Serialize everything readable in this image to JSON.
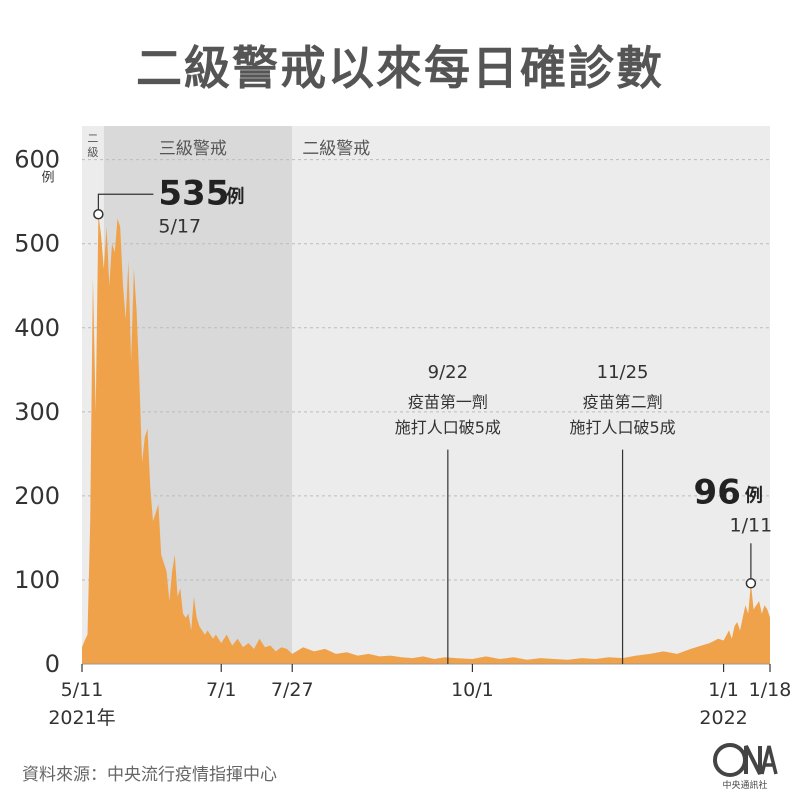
{
  "title": "二級警戒以來每日確診數",
  "source": "資料來源：中央流行疫情指揮中心",
  "logo": {
    "text": "中央通訊社",
    "icon": "cna-logo-icon"
  },
  "colors": {
    "area": "#f0a24a",
    "band_lvl3": "#d9d9d9",
    "band_lvl2": "#ececec",
    "grid": "#bcbcbc",
    "text": "#333333"
  },
  "chart_data": {
    "type": "area",
    "title": "二級警戒以來每日確診數",
    "ylim": [
      0,
      640
    ],
    "y_ticks": [
      0,
      100,
      200,
      300,
      400,
      500,
      600
    ],
    "y_unit": "例",
    "grid": true,
    "x_ticks": [
      {
        "date": "2021-05-11",
        "label": "5/11",
        "sub": "2021年"
      },
      {
        "date": "2021-07-01",
        "label": "7/1"
      },
      {
        "date": "2021-07-27",
        "label": "7/27"
      },
      {
        "date": "2021-10-01",
        "label": "10/1"
      },
      {
        "date": "2022-01-01",
        "label": "1/1",
        "sub": "2022"
      },
      {
        "date": "2022-01-18",
        "label": "1/18"
      }
    ],
    "bands": [
      {
        "label": "二級",
        "from": "2021-05-11",
        "to": "2021-05-19"
      },
      {
        "label": "三級警戒",
        "from": "2021-05-19",
        "to": "2021-07-27"
      },
      {
        "label": "二級警戒",
        "from": "2021-07-27",
        "to": "2022-01-18"
      }
    ],
    "series": [
      {
        "points": [
          [
            "2021-05-11",
            20
          ],
          [
            "2021-05-12",
            28
          ],
          [
            "2021-05-13",
            35
          ],
          [
            "2021-05-14",
            170
          ],
          [
            "2021-05-15",
            460
          ],
          [
            "2021-05-16",
            300
          ],
          [
            "2021-05-17",
            535
          ],
          [
            "2021-05-18",
            510
          ],
          [
            "2021-05-19",
            470
          ],
          [
            "2021-05-20",
            520
          ],
          [
            "2021-05-21",
            450
          ],
          [
            "2021-05-22",
            500
          ],
          [
            "2021-05-23",
            490
          ],
          [
            "2021-05-24",
            530
          ],
          [
            "2021-05-25",
            520
          ],
          [
            "2021-05-26",
            450
          ],
          [
            "2021-05-27",
            410
          ],
          [
            "2021-05-28",
            480
          ],
          [
            "2021-05-29",
            360
          ],
          [
            "2021-05-30",
            470
          ],
          [
            "2021-05-31",
            420
          ],
          [
            "2021-06-01",
            340
          ],
          [
            "2021-06-02",
            240
          ],
          [
            "2021-06-03",
            270
          ],
          [
            "2021-06-04",
            280
          ],
          [
            "2021-06-05",
            210
          ],
          [
            "2021-06-06",
            170
          ],
          [
            "2021-06-07",
            180
          ],
          [
            "2021-06-08",
            190
          ],
          [
            "2021-06-09",
            130
          ],
          [
            "2021-06-10",
            120
          ],
          [
            "2021-06-11",
            110
          ],
          [
            "2021-06-12",
            75
          ],
          [
            "2021-06-13",
            110
          ],
          [
            "2021-06-14",
            130
          ],
          [
            "2021-06-15",
            80
          ],
          [
            "2021-06-16",
            90
          ],
          [
            "2021-06-17",
            60
          ],
          [
            "2021-06-18",
            55
          ],
          [
            "2021-06-19",
            60
          ],
          [
            "2021-06-20",
            40
          ],
          [
            "2021-06-21",
            80
          ],
          [
            "2021-06-22",
            55
          ],
          [
            "2021-06-23",
            45
          ],
          [
            "2021-06-24",
            40
          ],
          [
            "2021-06-25",
            35
          ],
          [
            "2021-06-26",
            40
          ],
          [
            "2021-06-27",
            35
          ],
          [
            "2021-06-28",
            30
          ],
          [
            "2021-06-29",
            35
          ],
          [
            "2021-06-30",
            30
          ],
          [
            "2021-07-01",
            25
          ],
          [
            "2021-07-03",
            35
          ],
          [
            "2021-07-05",
            22
          ],
          [
            "2021-07-07",
            30
          ],
          [
            "2021-07-09",
            20
          ],
          [
            "2021-07-11",
            25
          ],
          [
            "2021-07-13",
            18
          ],
          [
            "2021-07-15",
            30
          ],
          [
            "2021-07-17",
            20
          ],
          [
            "2021-07-19",
            22
          ],
          [
            "2021-07-21",
            15
          ],
          [
            "2021-07-23",
            20
          ],
          [
            "2021-07-25",
            18
          ],
          [
            "2021-07-27",
            12
          ],
          [
            "2021-07-31",
            20
          ],
          [
            "2021-08-04",
            15
          ],
          [
            "2021-08-08",
            18
          ],
          [
            "2021-08-12",
            12
          ],
          [
            "2021-08-16",
            14
          ],
          [
            "2021-08-20",
            10
          ],
          [
            "2021-08-24",
            12
          ],
          [
            "2021-08-28",
            9
          ],
          [
            "2021-09-01",
            10
          ],
          [
            "2021-09-05",
            8
          ],
          [
            "2021-09-09",
            7
          ],
          [
            "2021-09-13",
            9
          ],
          [
            "2021-09-17",
            6
          ],
          [
            "2021-09-21",
            8
          ],
          [
            "2021-09-25",
            7
          ],
          [
            "2021-10-01",
            6
          ],
          [
            "2021-10-06",
            9
          ],
          [
            "2021-10-11",
            6
          ],
          [
            "2021-10-16",
            8
          ],
          [
            "2021-10-21",
            5
          ],
          [
            "2021-10-26",
            7
          ],
          [
            "2021-10-31",
            6
          ],
          [
            "2021-11-05",
            5
          ],
          [
            "2021-11-10",
            7
          ],
          [
            "2021-11-15",
            6
          ],
          [
            "2021-11-20",
            8
          ],
          [
            "2021-11-25",
            7
          ],
          [
            "2021-11-30",
            10
          ],
          [
            "2021-12-05",
            12
          ],
          [
            "2021-12-10",
            15
          ],
          [
            "2021-12-15",
            12
          ],
          [
            "2021-12-20",
            18
          ],
          [
            "2021-12-24",
            22
          ],
          [
            "2021-12-27",
            25
          ],
          [
            "2021-12-30",
            30
          ],
          [
            "2022-01-01",
            28
          ],
          [
            "2022-01-03",
            40
          ],
          [
            "2022-01-04",
            30
          ],
          [
            "2022-01-05",
            45
          ],
          [
            "2022-01-06",
            50
          ],
          [
            "2022-01-07",
            40
          ],
          [
            "2022-01-08",
            55
          ],
          [
            "2022-01-09",
            70
          ],
          [
            "2022-01-10",
            60
          ],
          [
            "2022-01-11",
            96
          ],
          [
            "2022-01-12",
            65
          ],
          [
            "2022-01-13",
            70
          ],
          [
            "2022-01-14",
            75
          ],
          [
            "2022-01-15",
            60
          ],
          [
            "2022-01-16",
            70
          ],
          [
            "2022-01-17",
            65
          ],
          [
            "2022-01-18",
            55
          ]
        ]
      }
    ],
    "annotations": [
      {
        "date": "2021-05-17",
        "value": "535",
        "unit": "例",
        "date_label": "5/17"
      },
      {
        "date": "2022-01-11",
        "value": "96",
        "unit": "例",
        "date_label": "1/11"
      }
    ],
    "markers": [
      {
        "date": "2021-09-22",
        "date_label": "9/22",
        "line1": "疫苗第一劑",
        "line2": "施打人口破5成"
      },
      {
        "date": "2021-11-25",
        "date_label": "11/25",
        "line1": "疫苗第二劑",
        "line2": "施打人口破5成"
      }
    ]
  }
}
